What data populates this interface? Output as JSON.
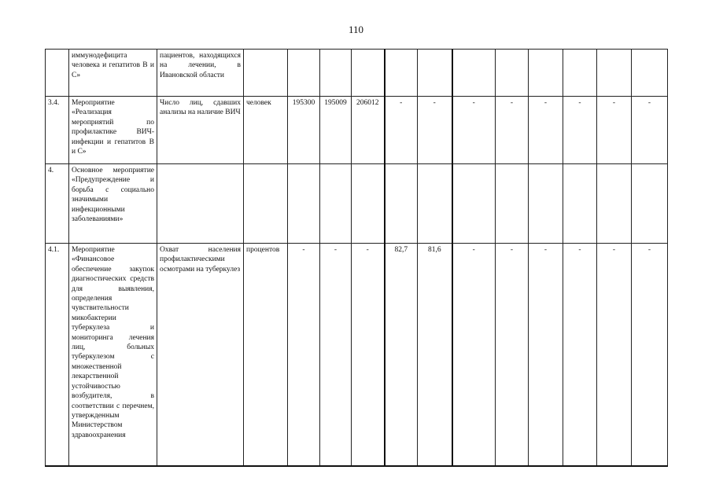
{
  "page_number": "110",
  "rows": [
    [
      "",
      "иммунодефицита человека и гепатитов В и С»",
      "пациентов, находящихся на лечении, в Ивановской области",
      "",
      "",
      "",
      "",
      "",
      "",
      "",
      "",
      "",
      "",
      "",
      ""
    ],
    [
      "3.4.",
      "Мероприятие «Реализация мероприятий по профилактике ВИЧ-инфекции и гепатитов В и С»",
      "Число лиц, сдавших анализы на наличие ВИЧ",
      "человек",
      "195300",
      "195009",
      "206012",
      "-",
      "-",
      "-",
      "-",
      "-",
      "-",
      "-",
      "-"
    ],
    [
      "4.",
      "Основное мероприятие «Предупреждение и борьба с социально значимыми инфекционными заболеваниями»",
      "",
      "",
      "",
      "",
      "",
      "",
      "",
      "",
      "",
      "",
      "",
      "",
      ""
    ],
    [
      "4.1.",
      "Мероприятие «Финансовое обеспечение закупок диагностических средств для выявления, определения чувствительности микобактерии туберкулеза и мониторинга лечения лиц, больных туберкулезом с множественной лекарственной устойчивостью возбудителя, в соответствии с перечнем, утвержденным Министерством здравоохранения",
      "Охват населения профилактическими осмотрами на туберкулез",
      "процентов",
      "-",
      "-",
      "-",
      "82,7",
      "81,6",
      "-",
      "-",
      "-",
      "-",
      "-",
      "-"
    ]
  ]
}
